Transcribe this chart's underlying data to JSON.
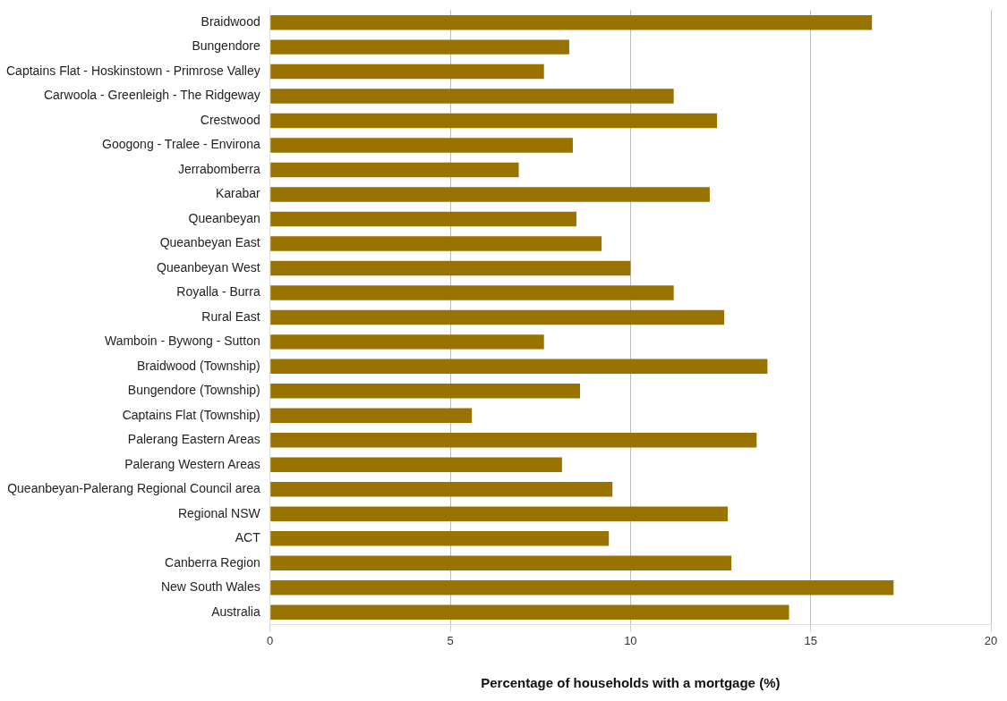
{
  "chart_data": {
    "type": "bar",
    "orientation": "horizontal",
    "xlabel": "Percentage of households with a mortgage (%)",
    "categories": [
      "Braidwood",
      "Bungendore",
      "Captains Flat - Hoskinstown - Primrose Valley",
      "Carwoola - Greenleigh - The Ridgeway",
      "Crestwood",
      "Googong - Tralee - Environa",
      "Jerrabomberra",
      "Karabar",
      "Queanbeyan",
      "Queanbeyan East",
      "Queanbeyan West",
      "Royalla - Burra",
      "Rural East",
      "Wamboin - Bywong - Sutton",
      "Braidwood (Township)",
      "Bungendore (Township)",
      "Captains Flat (Township)",
      "Palerang Eastern Areas",
      "Palerang Western Areas",
      "Queanbeyan-Palerang Regional Council area",
      "Regional NSW",
      "ACT",
      "Canberra Region",
      "New South Wales",
      "Australia"
    ],
    "values": [
      16.7,
      8.3,
      7.6,
      11.2,
      12.4,
      8.4,
      6.9,
      12.2,
      8.5,
      9.2,
      10.0,
      11.2,
      12.6,
      7.6,
      13.8,
      8.6,
      5.6,
      13.5,
      8.1,
      9.5,
      12.7,
      9.4,
      12.8,
      17.3,
      14.4
    ],
    "color": "#997300",
    "xlim": [
      0,
      20
    ],
    "xticks": [
      0,
      5,
      10,
      15,
      20
    ],
    "grid": "x",
    "legend": false
  }
}
